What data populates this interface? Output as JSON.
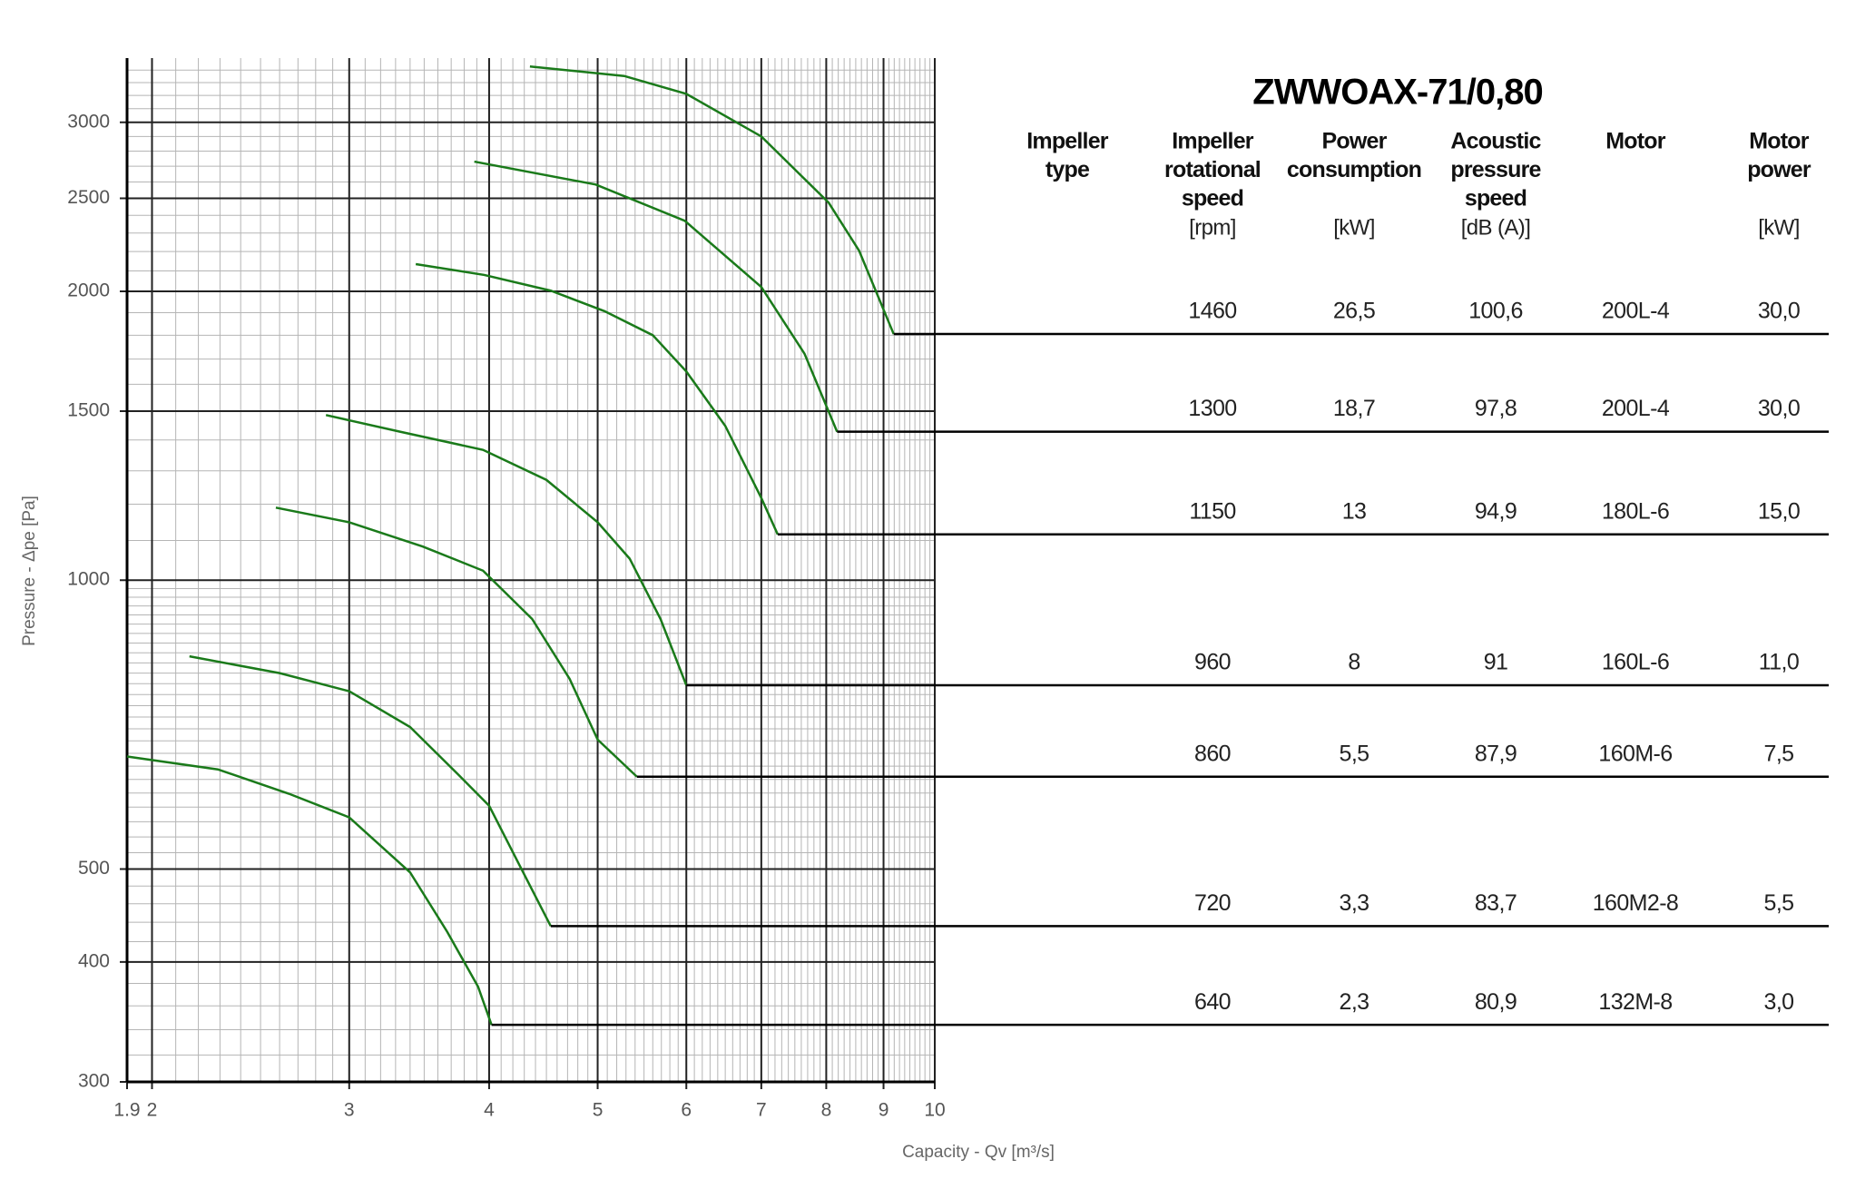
{
  "chart_data": {
    "type": "line",
    "x_label": "Capacity - Qv [m³/s]",
    "y_label": "Pressure - Δpe [Pa]",
    "log_x": true,
    "log_y": true,
    "grid": true,
    "minor_grid": true,
    "xlim": [
      1.9,
      10
    ],
    "ylim": [
      300,
      3500
    ],
    "xticks": [
      1.9,
      2,
      3,
      4,
      5,
      6,
      7,
      8,
      9,
      10
    ],
    "yticks": [
      300,
      400,
      500,
      1000,
      1500,
      2000,
      2500,
      3000
    ],
    "series": [
      {
        "color": "#1a7a1a",
        "x": [
          4.35,
          5.28,
          6.0,
          7.0,
          8.04,
          8.56,
          9.19
        ],
        "values": [
          3430,
          3353,
          3212,
          2900,
          2474,
          2204,
          1805
        ]
      },
      {
        "color": "#1a7a1a",
        "x": [
          3.88,
          4.98,
          5.98,
          7.0,
          7.65,
          8.18
        ],
        "values": [
          2730,
          2584,
          2369,
          2021,
          1722,
          1428
        ]
      },
      {
        "color": "#1a7a1a",
        "x": [
          3.44,
          3.96,
          4.54,
          5.07,
          5.6,
          6.0,
          6.5,
          7.0,
          7.24
        ],
        "values": [
          2135,
          2080,
          2003,
          1907,
          1800,
          1650,
          1448,
          1218,
          1116
        ]
      },
      {
        "color": "#1a7a1a",
        "x": [
          2.86,
          3.33,
          3.95,
          4.5,
          5.0,
          5.34,
          5.69,
          6.0
        ],
        "values": [
          1486,
          1428,
          1367,
          1272,
          1149,
          1053,
          911,
          777
        ]
      },
      {
        "color": "#1a7a1a",
        "x": [
          2.58,
          3.0,
          3.49,
          3.95,
          4.37,
          4.72,
          5.0,
          5.42
        ],
        "values": [
          1190,
          1149,
          1084,
          1023,
          911,
          789,
          682,
          624
        ]
      },
      {
        "color": "#1a7a1a",
        "x": [
          2.16,
          2.6,
          3.0,
          3.4,
          3.76,
          4.0,
          4.26,
          4.54
        ],
        "values": [
          833,
          800,
          766,
          703,
          626,
          582,
          504,
          436
        ]
      },
      {
        "color": "#1a7a1a",
        "x": [
          1.9,
          2.29,
          2.65,
          3.0,
          3.4,
          3.67,
          3.91,
          4.02
        ],
        "values": [
          655,
          635,
          599,
          566,
          496,
          430,
          377,
          344
        ]
      }
    ]
  },
  "table": {
    "title": "ZWWOAX-71/0,80",
    "columns": [
      {
        "header": [
          "Impeller",
          "type"
        ]
      },
      {
        "header": [
          "Impeller",
          "rotational",
          "speed"
        ],
        "unit": "[rpm]"
      },
      {
        "header": [
          "Power",
          "consumption"
        ],
        "unit": "[kW]"
      },
      {
        "header": [
          "Acoustic",
          "pressure",
          "speed"
        ],
        "unit": "[dB (A)]"
      },
      {
        "header": [
          "Motor"
        ]
      },
      {
        "header": [
          "Motor",
          "power"
        ],
        "unit": "[kW]"
      }
    ],
    "rows": [
      [
        "1460",
        "26,5",
        "100,6",
        "200L-4",
        "30,0"
      ],
      [
        "1300",
        "18,7",
        "97,8",
        "200L-4",
        "30,0"
      ],
      [
        "1150",
        "13",
        "94,9",
        "180L-6",
        "15,0"
      ],
      [
        "960",
        "8",
        "91",
        "160L-6",
        "11,0"
      ],
      [
        "860",
        "5,5",
        "87,9",
        "160M-6",
        "7,5"
      ],
      [
        "720",
        "3,3",
        "83,7",
        "160M2-8",
        "5,5"
      ],
      [
        "640",
        "2,3",
        "80,9",
        "132M-8",
        "3,0"
      ]
    ]
  }
}
